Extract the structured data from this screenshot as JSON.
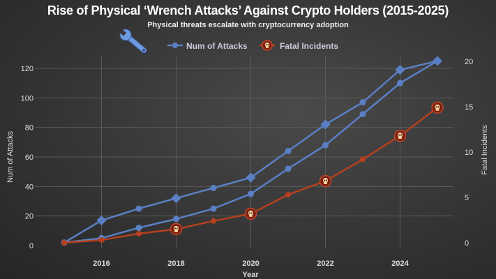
{
  "chart_data": {
    "type": "line",
    "title": "Rise of Physical ‘Wrench Attacks’ Against Crypto Holders (2015-2025)",
    "subtitle": "Physical threats escalate with cryptocurrency adoption",
    "xlabel": "Year",
    "ylabel_left": "Num of Attacks",
    "ylabel_right": "Fatal Incidents",
    "x": [
      2015,
      2016,
      2017,
      2018,
      2019,
      2020,
      2021,
      2022,
      2023,
      2024,
      2025
    ],
    "x_ticks": [
      "2016",
      "2018",
      "2020",
      "2022",
      "2024"
    ],
    "ylim_left": [
      0,
      125
    ],
    "yticks_left": [
      "0",
      "20",
      "40",
      "60",
      "80",
      "100",
      "120"
    ],
    "ylim_right": [
      0,
      20.8
    ],
    "yticks_right": [
      "0",
      "5",
      "10",
      "15",
      "20"
    ],
    "grid": true,
    "legend_placement": "top-center",
    "series": [
      {
        "name": "Num of Attacks",
        "axis": "left",
        "color": "#5b7fc4",
        "marker": "circle",
        "values": [
          2,
          5,
          12,
          18,
          25,
          35,
          52,
          68,
          89,
          110,
          125
        ]
      },
      {
        "axis": "left",
        "color": "#5b7fc4",
        "marker": "diamond",
        "values": [
          2,
          17,
          25,
          32,
          39,
          46,
          64,
          82,
          97,
          119,
          125
        ]
      },
      {
        "name": "Fatal Incidents",
        "axis": "right",
        "color": "#b5401f",
        "marker": "skull",
        "values": [
          0,
          0.3,
          1,
          1.5,
          2.4,
          3.2,
          5.3,
          6.8,
          9.2,
          11.8,
          14.9
        ]
      }
    ],
    "decoration_icon": "wrench-icon"
  }
}
